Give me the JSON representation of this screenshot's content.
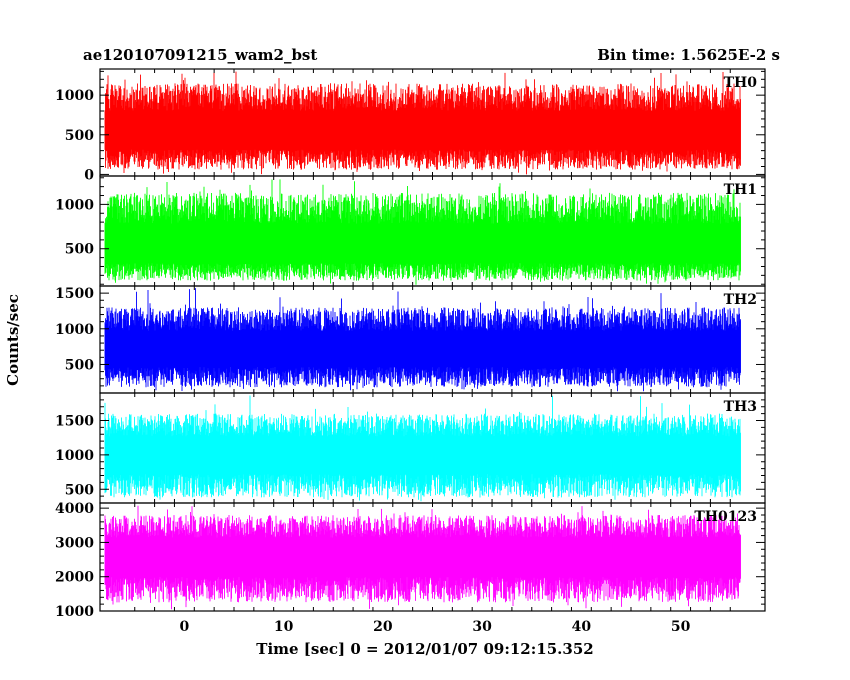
{
  "chart_data": {
    "type": "line",
    "title_left": "ae120107091215_wam2_bst",
    "title_right": "Bin time: 1.5625E-2 s",
    "xlabel": "Time [sec] 0 = 2012/01/07 09:12:15.352",
    "ylabel": "Counts/sec",
    "xlim": [
      -8.5,
      58.5
    ],
    "data_x_range": [
      -8,
      56
    ],
    "xticks": [
      0,
      10,
      20,
      30,
      40,
      50
    ],
    "grid": false,
    "series": [
      {
        "name": "TH0",
        "color": "#ff0000",
        "ylim": [
          -20,
          1330
        ],
        "yticks": [
          0,
          500,
          1000
        ],
        "baseline": 520,
        "low": 60,
        "high": 1150,
        "spike_max": 1300
      },
      {
        "name": "TH1",
        "color": "#00ff00",
        "ylim": [
          80,
          1320
        ],
        "yticks": [
          500,
          1000
        ],
        "baseline": 500,
        "low": 140,
        "high": 1130,
        "spike_max": 1300
      },
      {
        "name": "TH2",
        "color": "#0000ff",
        "ylim": [
          100,
          1600
        ],
        "yticks": [
          500,
          1000,
          1500
        ],
        "baseline": 700,
        "low": 180,
        "high": 1300,
        "spike_max": 1580
      },
      {
        "name": "TH3",
        "color": "#00ffff",
        "ylim": [
          300,
          1900
        ],
        "yticks": [
          500,
          1000,
          1500
        ],
        "baseline": 1000,
        "low": 380,
        "high": 1600,
        "spike_max": 1880
      },
      {
        "name": "TH0123",
        "color": "#ff00ff",
        "ylim": [
          1000,
          4150
        ],
        "yticks": [
          1000,
          2000,
          3000,
          4000
        ],
        "baseline": 2600,
        "low": 1250,
        "high": 3800,
        "spike_max": 4100
      }
    ]
  }
}
